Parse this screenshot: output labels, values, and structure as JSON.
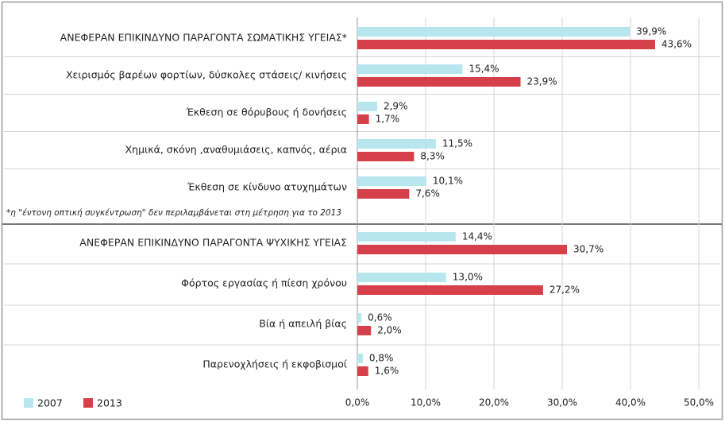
{
  "chart_data": {
    "type": "hbar",
    "categories": [
      "ΑΝΕΦΕΡΑΝ ΕΠΙΚΙΝΔΥΝΟ  ΠΑΡΑΓΟΝΤΑ ΣΩΜΑΤΙΚΗΣ ΥΓΕΙΑΣ*",
      "Χειρισμός βαρέων φορτίων, δύσκολες στάσεις/ κινήσεις",
      "Έκθεση σε θόρυβους ή δονήσεις",
      "Χημικά, σκόνη ,αναθυμιάσεις,  καπνός, αέρια",
      "Έκθεση σε κίνδυνο ατυχημάτων",
      "ΑΝΕΦΕΡΑΝ ΕΠΙΚΙΝΔΥΝΟ  ΠΑΡΑΓΟΝΤΑ ΨΥΧΙΚΗΣ ΥΓΕΙΑΣ",
      "Φόρτος εργασίας ή πίεση χρόνου",
      "Βία ή απειλή βίας",
      "Παρενοχλήσεις ή εκφοβισμοί"
    ],
    "series": [
      {
        "name": "2007",
        "color": "#b7e6ee",
        "values": [
          39.9,
          15.4,
          2.9,
          11.5,
          10.1,
          14.4,
          13.0,
          0.6,
          0.8
        ],
        "value_labels": [
          "39,9%",
          "15,4%",
          "2,9%",
          "11,5%",
          "10,1%",
          "14,4%",
          "13,0%",
          "0,6%",
          "0,8%"
        ]
      },
      {
        "name": "2013",
        "color": "#d6404b",
        "values": [
          43.6,
          23.9,
          1.7,
          8.3,
          7.6,
          30.7,
          27.2,
          2.0,
          1.6
        ],
        "value_labels": [
          "43,6%",
          "23,9%",
          "1,7%",
          "8,3%",
          "7,6%",
          "30,7%",
          "27,2%",
          "2,0%",
          "1,6%"
        ]
      }
    ],
    "xlim": [
      0,
      50
    ],
    "xticks": [
      {
        "value": 0,
        "label": "0,0%"
      },
      {
        "value": 10,
        "label": "10,0%"
      },
      {
        "value": 20,
        "label": "20,0%"
      },
      {
        "value": 30,
        "label": "30,0%"
      },
      {
        "value": 40,
        "label": "40,0%"
      },
      {
        "value": 50,
        "label": "50,0%"
      }
    ],
    "grid": true,
    "note": "*η \"έντονη οπτική συγκέντρωση\" δεν περιλαμβάνεται στη μέτρηση για το 2013"
  }
}
